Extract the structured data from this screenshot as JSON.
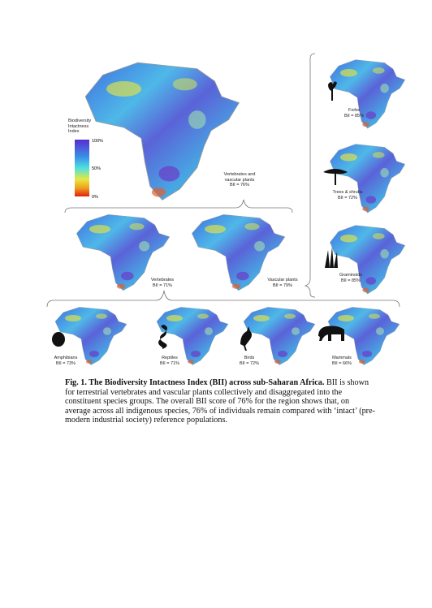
{
  "figure": {
    "legend": {
      "title": "Biodiversity Intactness Index",
      "ticks": [
        "100%",
        "50%",
        "0%"
      ]
    },
    "panels": [
      {
        "name": "Vertebrates and vascular plants",
        "bii": "BII = 76%"
      },
      {
        "name": "Forbs",
        "bii": "BII = 85%"
      },
      {
        "name": "Trees & shrubs",
        "bii": "BII = 72%"
      },
      {
        "name": "Graminoids",
        "bii": "BII = 85%"
      },
      {
        "name": "Vertebrates",
        "bii": "BII = 71%"
      },
      {
        "name": "Vascular plants",
        "bii": "BII = 79%"
      },
      {
        "name": "Amphibians",
        "bii": "BII = 73%"
      },
      {
        "name": "Reptiles",
        "bii": "BII = 71%"
      },
      {
        "name": "Birds",
        "bii": "BII = 72%"
      },
      {
        "name": "Mammals",
        "bii": "BII = 66%"
      }
    ]
  },
  "caption": {
    "title": "Fig. 1. The Biodiversity Intactness Index (BII) across sub-Saharan Africa.",
    "text": "BII is shown for terrestrial vertebrates and vascular plants collectively and disaggregated into the constituent species groups. The overall BII score of 76% for the region shows that, on average across all indigenous species, 76% of individuals remain compared with ‘intact’ (pre-modern industrial society) reference populations."
  }
}
